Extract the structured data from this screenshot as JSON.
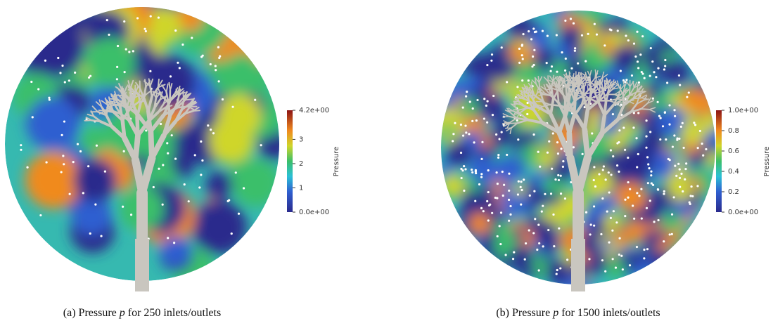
{
  "panels": [
    {
      "colorbar": {
        "label": "Pressure",
        "range": [
          0,
          4.2
        ],
        "ticks": [
          {
            "value": 4.2,
            "label": "4.2e+00"
          },
          3,
          2,
          1,
          {
            "value": 0,
            "label": "0.0e+00"
          }
        ]
      },
      "caption": {
        "label": "(a)",
        "before": "Pressure",
        "variable": "p",
        "after": "for 250 inlets/outlets"
      }
    },
    {
      "colorbar": {
        "label": "Pressure",
        "range": [
          0,
          1.0
        ],
        "ticks": [
          {
            "value": 1.0,
            "label": "1.0e+00"
          },
          0.8,
          0.6,
          0.4,
          0.2,
          {
            "value": 0,
            "label": "0.0e+00"
          }
        ]
      },
      "caption": {
        "label": "(b)",
        "before": "Pressure",
        "variable": "p",
        "after": "for 1500 inlets/outlets"
      }
    }
  ]
}
